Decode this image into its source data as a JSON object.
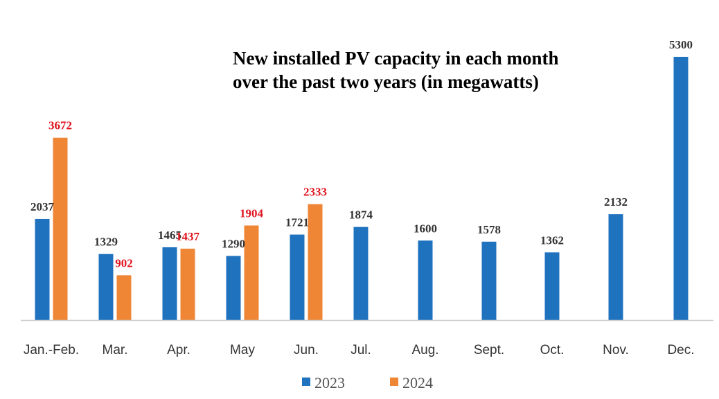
{
  "colors": {
    "series_2023": "#1f72bd",
    "series_2024": "#ef8636",
    "label_2023": "#333333",
    "label_2024": "#e0141e",
    "axis": "#c8c8c8"
  },
  "chart_data": {
    "type": "bar",
    "title": "New installed PV capacity in each month over the past two years (in megawatts)",
    "title_lines": [
      "New installed PV capacity in each month",
      "over the past two years (in megawatts)"
    ],
    "categories": [
      "Jan.-Feb.",
      "Mar.",
      "Apr.",
      "May",
      "Jun.",
      "Jul.",
      "Aug.",
      "Sept.",
      "Oct.",
      "Nov.",
      "Dec."
    ],
    "series": [
      {
        "name": "2023",
        "values": [
          2037,
          1329,
          1465,
          1290,
          1721,
          1874,
          1600,
          1578,
          1362,
          2132,
          5300
        ]
      },
      {
        "name": "2024",
        "values": [
          3672,
          902,
          1437,
          1904,
          2333,
          null,
          null,
          null,
          null,
          null,
          null
        ]
      }
    ],
    "ylim": [
      0,
      5300
    ],
    "xlabel": "",
    "ylabel": "",
    "grid": false,
    "legend": "bottom-center"
  }
}
